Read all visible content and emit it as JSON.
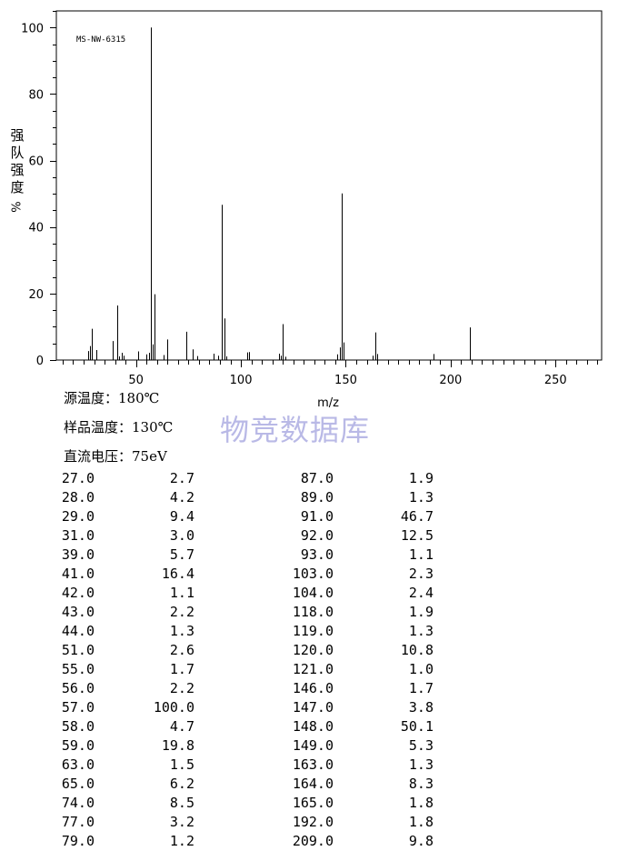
{
  "chart_data": {
    "type": "bar",
    "code": "MS-NW-6315",
    "xlabel": "m/z",
    "ylabel_chars": [
      "强",
      "队",
      "强",
      "度"
    ],
    "ylabel_unit": "%",
    "xlim": [
      12,
      272
    ],
    "ylim": [
      0,
      105
    ],
    "xticks": [
      50,
      100,
      150,
      200,
      250
    ],
    "yticks": [
      0,
      20,
      40,
      60,
      80,
      100
    ],
    "peaks": [
      [
        27.0,
        2.7
      ],
      [
        28.0,
        4.2
      ],
      [
        29.0,
        9.4
      ],
      [
        31.0,
        3.0
      ],
      [
        39.0,
        5.7
      ],
      [
        41.0,
        16.4
      ],
      [
        42.0,
        1.1
      ],
      [
        43.0,
        2.2
      ],
      [
        44.0,
        1.3
      ],
      [
        51.0,
        2.6
      ],
      [
        55.0,
        1.7
      ],
      [
        56.0,
        2.2
      ],
      [
        57.0,
        100.0
      ],
      [
        58.0,
        4.7
      ],
      [
        59.0,
        19.8
      ],
      [
        63.0,
        1.5
      ],
      [
        65.0,
        6.2
      ],
      [
        74.0,
        8.5
      ],
      [
        77.0,
        3.2
      ],
      [
        79.0,
        1.2
      ],
      [
        87.0,
        1.9
      ],
      [
        89.0,
        1.3
      ],
      [
        91.0,
        46.7
      ],
      [
        92.0,
        12.5
      ],
      [
        93.0,
        1.1
      ],
      [
        103.0,
        2.3
      ],
      [
        104.0,
        2.4
      ],
      [
        118.0,
        1.9
      ],
      [
        119.0,
        1.3
      ],
      [
        120.0,
        10.8
      ],
      [
        121.0,
        1.0
      ],
      [
        146.0,
        1.7
      ],
      [
        147.0,
        3.8
      ],
      [
        148.0,
        50.1
      ],
      [
        149.0,
        5.3
      ],
      [
        163.0,
        1.3
      ],
      [
        164.0,
        8.3
      ],
      [
        165.0,
        1.8
      ],
      [
        192.0,
        1.8
      ],
      [
        209.0,
        9.8
      ]
    ],
    "grid": false
  },
  "conditions": [
    {
      "label": "源温度：180℃"
    },
    {
      "label": "样品温度：130℃"
    },
    {
      "label": "直流电压：75eV"
    }
  ],
  "watermark": "物竞数据库",
  "table_rows": [
    [
      "27.0",
      "2.7",
      "87.0",
      "1.9"
    ],
    [
      "28.0",
      "4.2",
      "89.0",
      "1.3"
    ],
    [
      "29.0",
      "9.4",
      "91.0",
      "46.7"
    ],
    [
      "31.0",
      "3.0",
      "92.0",
      "12.5"
    ],
    [
      "39.0",
      "5.7",
      "93.0",
      "1.1"
    ],
    [
      "41.0",
      "16.4",
      "103.0",
      "2.3"
    ],
    [
      "42.0",
      "1.1",
      "104.0",
      "2.4"
    ],
    [
      "43.0",
      "2.2",
      "118.0",
      "1.9"
    ],
    [
      "44.0",
      "1.3",
      "119.0",
      "1.3"
    ],
    [
      "51.0",
      "2.6",
      "120.0",
      "10.8"
    ],
    [
      "55.0",
      "1.7",
      "121.0",
      "1.0"
    ],
    [
      "56.0",
      "2.2",
      "146.0",
      "1.7"
    ],
    [
      "57.0",
      "100.0",
      "147.0",
      "3.8"
    ],
    [
      "58.0",
      "4.7",
      "148.0",
      "50.1"
    ],
    [
      "59.0",
      "19.8",
      "149.0",
      "5.3"
    ],
    [
      "63.0",
      "1.5",
      "163.0",
      "1.3"
    ],
    [
      "65.0",
      "6.2",
      "164.0",
      "8.3"
    ],
    [
      "74.0",
      "8.5",
      "165.0",
      "1.8"
    ],
    [
      "77.0",
      "3.2",
      "192.0",
      "1.8"
    ],
    [
      "79.0",
      "1.2",
      "209.0",
      "9.8"
    ]
  ]
}
